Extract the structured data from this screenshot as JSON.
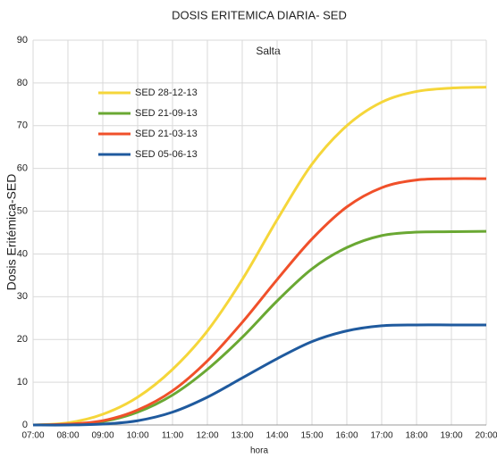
{
  "chart_data": {
    "type": "line",
    "title": "DOSIS ERITEMICA DIARIA- SED",
    "subtitle": "Salta",
    "x_label": "hora",
    "y_label": "Dosis Eritémica-SED",
    "categories": [
      "07:00",
      "08:00",
      "09:00",
      "10:00",
      "11:00",
      "12:00",
      "13:00",
      "14:00",
      "15:00",
      "16:00",
      "17:00",
      "18:00",
      "19:00",
      "20:00"
    ],
    "series": [
      {
        "name": "SED 28-12-13",
        "color": "#f5d63a",
        "values": [
          0,
          0.5,
          2.5,
          6.5,
          13,
          22,
          34,
          48,
          61,
          70,
          75.5,
          78,
          78.8,
          79
        ]
      },
      {
        "name": "SED 21-09-13",
        "color": "#6aa833",
        "values": [
          0,
          0.1,
          0.8,
          3,
          7,
          13,
          20.5,
          29,
          36.5,
          41.5,
          44.3,
          45.1,
          45.2,
          45.3
        ]
      },
      {
        "name": "SED 21-03-13",
        "color": "#f0502a",
        "values": [
          0,
          0.2,
          1,
          3.5,
          8,
          15,
          24,
          34,
          43.5,
          51,
          55.5,
          57.3,
          57.6,
          57.6
        ]
      },
      {
        "name": "SED 05-06-13",
        "color": "#1f5a9e",
        "values": [
          0,
          0,
          0.2,
          1,
          3,
          6.5,
          11,
          15.5,
          19.5,
          22,
          23.2,
          23.4,
          23.4,
          23.4
        ]
      }
    ],
    "ylim": [
      0,
      90
    ],
    "yticks": [
      0,
      10,
      20,
      30,
      40,
      50,
      60,
      70,
      80,
      90
    ],
    "grid": true,
    "legend": "upper-left"
  }
}
